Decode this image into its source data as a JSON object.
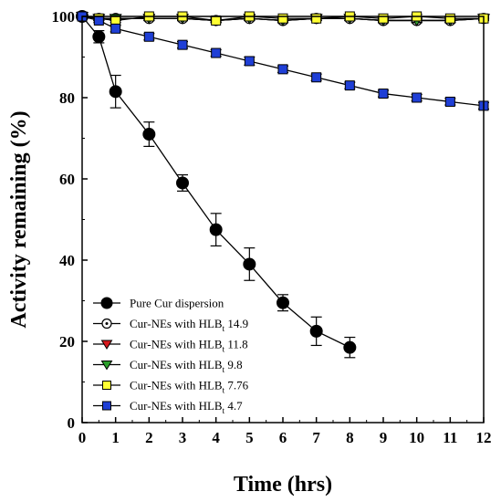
{
  "chart_data": {
    "type": "line",
    "xlabel": "Time (hrs)",
    "ylabel": "Activity remaining (%)",
    "xlim": [
      0,
      12
    ],
    "ylim": [
      0,
      100
    ],
    "xticks": [
      "0",
      "1",
      "2",
      "3",
      "4",
      "5",
      "6",
      "7",
      "8",
      "9",
      "10",
      "11",
      "12"
    ],
    "yticks": [
      "0",
      "20",
      "40",
      "60",
      "80",
      "100"
    ],
    "grid": false,
    "legend_position": "bottom-left",
    "series": [
      {
        "name": "Pure Cur dispersion",
        "prefix": "Pure Cur dispersion",
        "sub": "",
        "suffix": "",
        "marker": "circle",
        "fill": "#000000",
        "x": [
          0,
          0.5,
          1,
          2,
          3,
          4,
          5,
          6,
          7,
          8
        ],
        "y": [
          100,
          95,
          81.5,
          71,
          59,
          47.5,
          39,
          29.5,
          22.5,
          18.5
        ],
        "err": [
          0,
          1.5,
          4,
          3,
          2,
          4,
          4,
          2,
          3.5,
          2.5
        ]
      },
      {
        "name": "Cur-NEs with HLBt 14.9",
        "prefix": "Cur-NEs with HLB",
        "sub": "t",
        "suffix": " 14.9",
        "marker": "circle-dot",
        "fill": "#ffffff",
        "x": [
          0,
          0.5,
          1,
          2,
          3,
          4,
          5,
          6,
          7,
          8,
          9,
          10,
          11,
          12
        ],
        "y": [
          100,
          99.5,
          99.5,
          99.5,
          99.5,
          99,
          99.5,
          99,
          99.5,
          99.5,
          99,
          99,
          99,
          99.5
        ],
        "err": [
          0,
          0.5,
          0.5,
          0.5,
          0.5,
          0.5,
          0.5,
          0.5,
          0.5,
          0.5,
          0.5,
          0.5,
          0.5,
          0.5
        ]
      },
      {
        "name": "Cur-NEs with HLBt 11.8",
        "prefix": "Cur-NEs with HLB",
        "sub": "t",
        "suffix": " 11.8",
        "marker": "triangle-down",
        "fill": "#d7191c",
        "x": [
          0,
          0.5,
          1,
          2,
          3,
          4,
          5,
          6,
          7,
          8,
          9,
          10,
          11,
          12
        ],
        "y": [
          100,
          99.5,
          99.5,
          99.5,
          99.5,
          99,
          99.5,
          99,
          99.5,
          99.5,
          99,
          99,
          99,
          99.5
        ],
        "err": [
          0,
          0.5,
          0.5,
          0.5,
          0.5,
          0.5,
          0.5,
          0.5,
          0.5,
          0.5,
          0.5,
          0.5,
          0.5,
          0.5
        ]
      },
      {
        "name": "Cur-NEs with HLBt 9.8",
        "prefix": "Cur-NEs with HLB",
        "sub": "t",
        "suffix": " 9.8",
        "marker": "triangle-down",
        "fill": "#2ca02c",
        "x": [
          0,
          0.5,
          1,
          2,
          3,
          4,
          5,
          6,
          7,
          8,
          9,
          10,
          11,
          12
        ],
        "y": [
          100,
          99.5,
          99.5,
          99.5,
          99.5,
          99,
          99.5,
          99,
          99.5,
          99.5,
          99,
          99,
          99,
          99.5
        ],
        "err": [
          0,
          0.5,
          0.5,
          0.5,
          0.5,
          0.5,
          0.5,
          0.5,
          0.5,
          0.5,
          0.5,
          0.5,
          0.5,
          0.5
        ]
      },
      {
        "name": "Cur-NEs with HLBt 7.76",
        "prefix": "Cur-NEs with HLB",
        "sub": "t",
        "suffix": " 7.76",
        "marker": "square",
        "fill": "#ffff33",
        "x": [
          0,
          0.5,
          1,
          2,
          3,
          4,
          5,
          6,
          7,
          8,
          9,
          10,
          11,
          12
        ],
        "y": [
          100,
          99.5,
          99,
          100,
          100,
          99,
          100,
          99.5,
          99.5,
          100,
          99.5,
          100,
          99.5,
          99.5
        ],
        "err": [
          0,
          0.5,
          0.5,
          0.5,
          0.5,
          0.5,
          0.5,
          0.5,
          0.5,
          0.5,
          0.5,
          0.5,
          0.5,
          0.5
        ]
      },
      {
        "name": "Cur-NEs with HLBt 4.7",
        "prefix": "Cur-NEs with HLB",
        "sub": "t",
        "suffix": " 4.7",
        "marker": "square",
        "fill": "#1f3fd6",
        "x": [
          0,
          0.5,
          1,
          2,
          3,
          4,
          5,
          6,
          7,
          8,
          9,
          10,
          11,
          12
        ],
        "y": [
          100,
          99,
          97,
          95,
          93,
          91,
          89,
          87,
          85,
          83,
          81,
          80,
          79,
          78
        ],
        "err": [
          0,
          0.5,
          0.8,
          0.8,
          0.8,
          0.8,
          1,
          0.8,
          0.8,
          0.8,
          0.8,
          0.8,
          0.8,
          0.8
        ]
      }
    ]
  }
}
